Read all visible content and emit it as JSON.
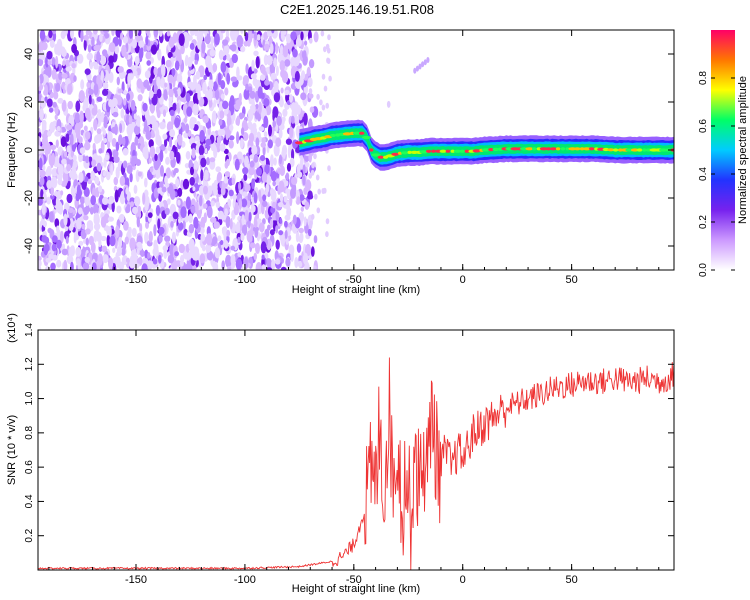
{
  "title": "C2E1.2025.146.19.51.R08",
  "chart_data": [
    {
      "type": "heatmap",
      "xlabel": "Height of straight line (km)",
      "ylabel": "Frequency (Hz)",
      "xlim": [
        -195,
        97
      ],
      "ylim": [
        -50,
        50
      ],
      "xticks": [
        -150,
        -100,
        -50,
        0,
        50
      ],
      "yticks": [
        -40,
        -20,
        0,
        20,
        40
      ],
      "colorbar": {
        "label": "Normalized spectral amplitude",
        "range": [
          0.0,
          1.0
        ],
        "ticks": [
          "0.0",
          "0.2",
          "0.4",
          "0.6",
          "0.8"
        ],
        "colors": [
          "#ffffff",
          "#cc99ff",
          "#7722ee",
          "#2233ff",
          "#00ccff",
          "#00ff66",
          "#ffff00",
          "#ff7700",
          "#ff0066"
        ]
      },
      "noise_region": {
        "x": [
          -195,
          -70
        ],
        "y": [
          -50,
          50
        ],
        "level": 0.25
      },
      "signal_track": {
        "x": [
          -75,
          -72,
          -68,
          -64,
          -60,
          -55,
          -50,
          -46,
          -44,
          -42,
          -40,
          -38,
          -35,
          -30,
          -25,
          -20,
          -15,
          -10,
          -5,
          0,
          5,
          10,
          20,
          30,
          40,
          50,
          60,
          70,
          80,
          90,
          97
        ],
        "y": [
          3,
          3.5,
          4.5,
          5,
          6,
          6.5,
          7,
          7,
          5,
          0,
          -2,
          -3,
          -3,
          -1.5,
          -1,
          -1,
          -0.5,
          -0.5,
          -0.5,
          -0.5,
          -0.5,
          0,
          0.5,
          0.5,
          0.5,
          0.5,
          0.5,
          0,
          0,
          0,
          0
        ]
      },
      "grid": false
    },
    {
      "type": "line",
      "xlabel": "Height of straight line (km)",
      "ylabel": "SNR (10 * v/v)",
      "y_multiplier": "(x10⁴)",
      "xlim": [
        -195,
        97
      ],
      "ylim": [
        0,
        1.4
      ],
      "xticks": [
        -150,
        -100,
        -50,
        0,
        50
      ],
      "yticks": [
        0.2,
        0.4,
        0.6,
        0.8,
        1.0,
        1.2,
        1.4
      ],
      "color": "#ee3333",
      "series": [
        {
          "x": [
            -195,
            -150,
            -100,
            -75,
            -60,
            -55,
            -50,
            -45,
            -42,
            -40,
            -38,
            -36,
            -34,
            -32,
            -30,
            -28,
            -26,
            -24,
            -22,
            -20,
            -18,
            -16,
            -14,
            -12,
            -10,
            -8,
            -5,
            -2,
            0,
            5,
            10,
            15,
            20,
            25,
            30,
            35,
            40,
            45,
            50,
            55,
            60,
            65,
            70,
            75,
            80,
            85,
            90,
            95,
            97
          ],
          "y": [
            0.01,
            0.01,
            0.01,
            0.02,
            0.05,
            0.08,
            0.15,
            0.35,
            0.55,
            0.45,
            0.9,
            0.4,
            1.0,
            0.5,
            0.8,
            0.35,
            0.6,
            0.3,
            0.75,
            0.45,
            0.7,
            0.55,
            1.0,
            0.65,
            0.6,
            0.7,
            0.6,
            0.7,
            0.65,
            0.8,
            0.85,
            0.9,
            0.95,
            0.97,
            1.0,
            1.02,
            1.05,
            1.07,
            1.08,
            1.1,
            1.1,
            1.1,
            1.12,
            1.1,
            1.1,
            1.12,
            1.1,
            1.12,
            1.15
          ]
        }
      ],
      "grid": false
    }
  ]
}
